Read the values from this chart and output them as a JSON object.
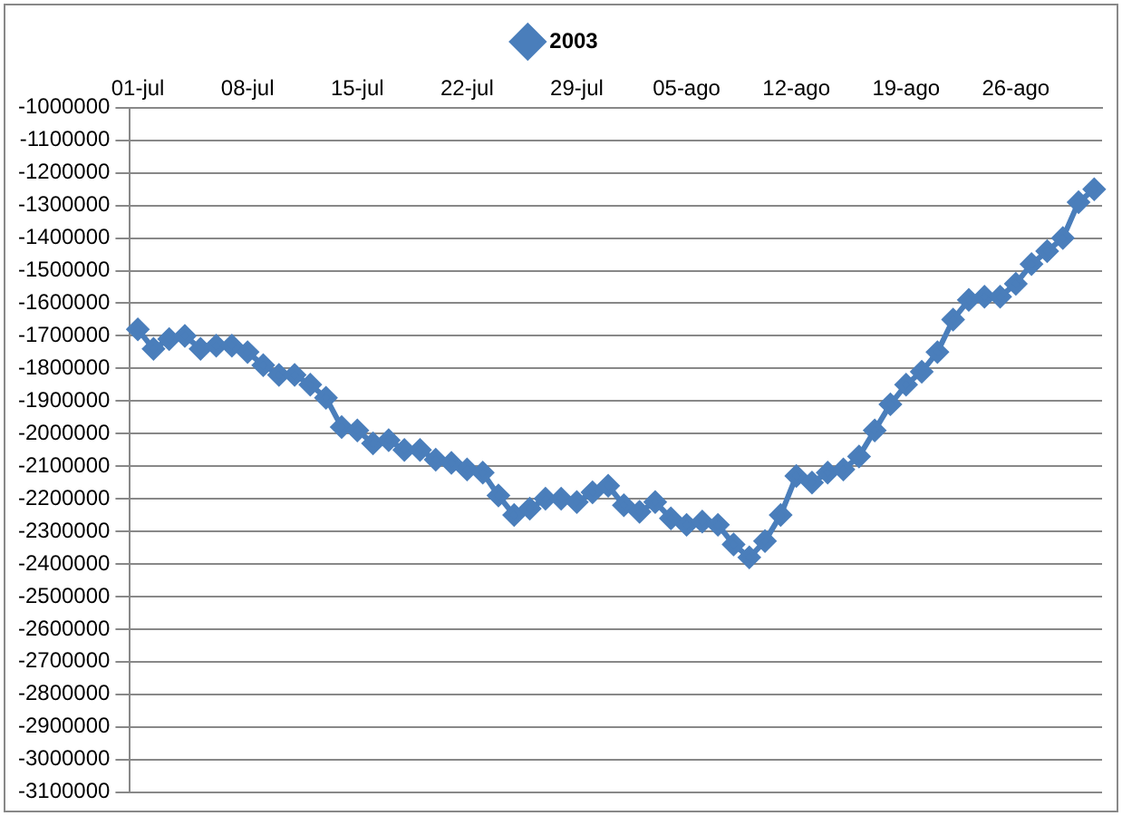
{
  "chart_data": {
    "type": "line",
    "categories": [
      "01-jul",
      null,
      null,
      null,
      null,
      null,
      null,
      "08-jul",
      null,
      null,
      null,
      null,
      null,
      null,
      "15-jul",
      null,
      null,
      null,
      null,
      null,
      null,
      "22-jul",
      null,
      null,
      null,
      null,
      null,
      null,
      "29-jul",
      null,
      null,
      null,
      null,
      null,
      null,
      "05-ago",
      null,
      null,
      null,
      null,
      null,
      null,
      "12-ago",
      null,
      null,
      null,
      null,
      null,
      null,
      "19-ago",
      null,
      null,
      null,
      null,
      null,
      null,
      "26-ago",
      null,
      null,
      null,
      null,
      null
    ],
    "series": [
      {
        "name": "2003",
        "color": "#4a7ebb",
        "values": [
          -1680000,
          -1740000,
          -1710000,
          -1700000,
          -1740000,
          -1730000,
          -1730000,
          -1750000,
          -1790000,
          -1820000,
          -1820000,
          -1850000,
          -1890000,
          -1980000,
          -1990000,
          -2030000,
          -2020000,
          -2050000,
          -2050000,
          -2080000,
          -2090000,
          -2110000,
          -2120000,
          -2190000,
          -2250000,
          -2230000,
          -2200000,
          -2200000,
          -2210000,
          -2180000,
          -2160000,
          -2220000,
          -2240000,
          -2210000,
          -2260000,
          -2280000,
          -2270000,
          -2280000,
          -2340000,
          -2380000,
          -2330000,
          -2250000,
          -2130000,
          -2150000,
          -2120000,
          -2110000,
          -2070000,
          -1990000,
          -1910000,
          -1850000,
          -1810000,
          -1750000,
          -1650000,
          -1590000,
          -1580000,
          -1580000,
          -1540000,
          -1480000,
          -1440000,
          -1400000,
          -1290000,
          -1250000
        ]
      }
    ],
    "ylim": [
      -3100000,
      -1000000
    ],
    "yticks": [
      -1000000,
      -1100000,
      -1200000,
      -1300000,
      -1400000,
      -1500000,
      -1600000,
      -1700000,
      -1800000,
      -1900000,
      -2000000,
      -2100000,
      -2200000,
      -2300000,
      -2400000,
      -2500000,
      -2600000,
      -2700000,
      -2800000,
      -2900000,
      -3000000,
      -3100000
    ],
    "grid": "y",
    "legend": "top",
    "marker": "diamond",
    "line_style": "solid"
  }
}
